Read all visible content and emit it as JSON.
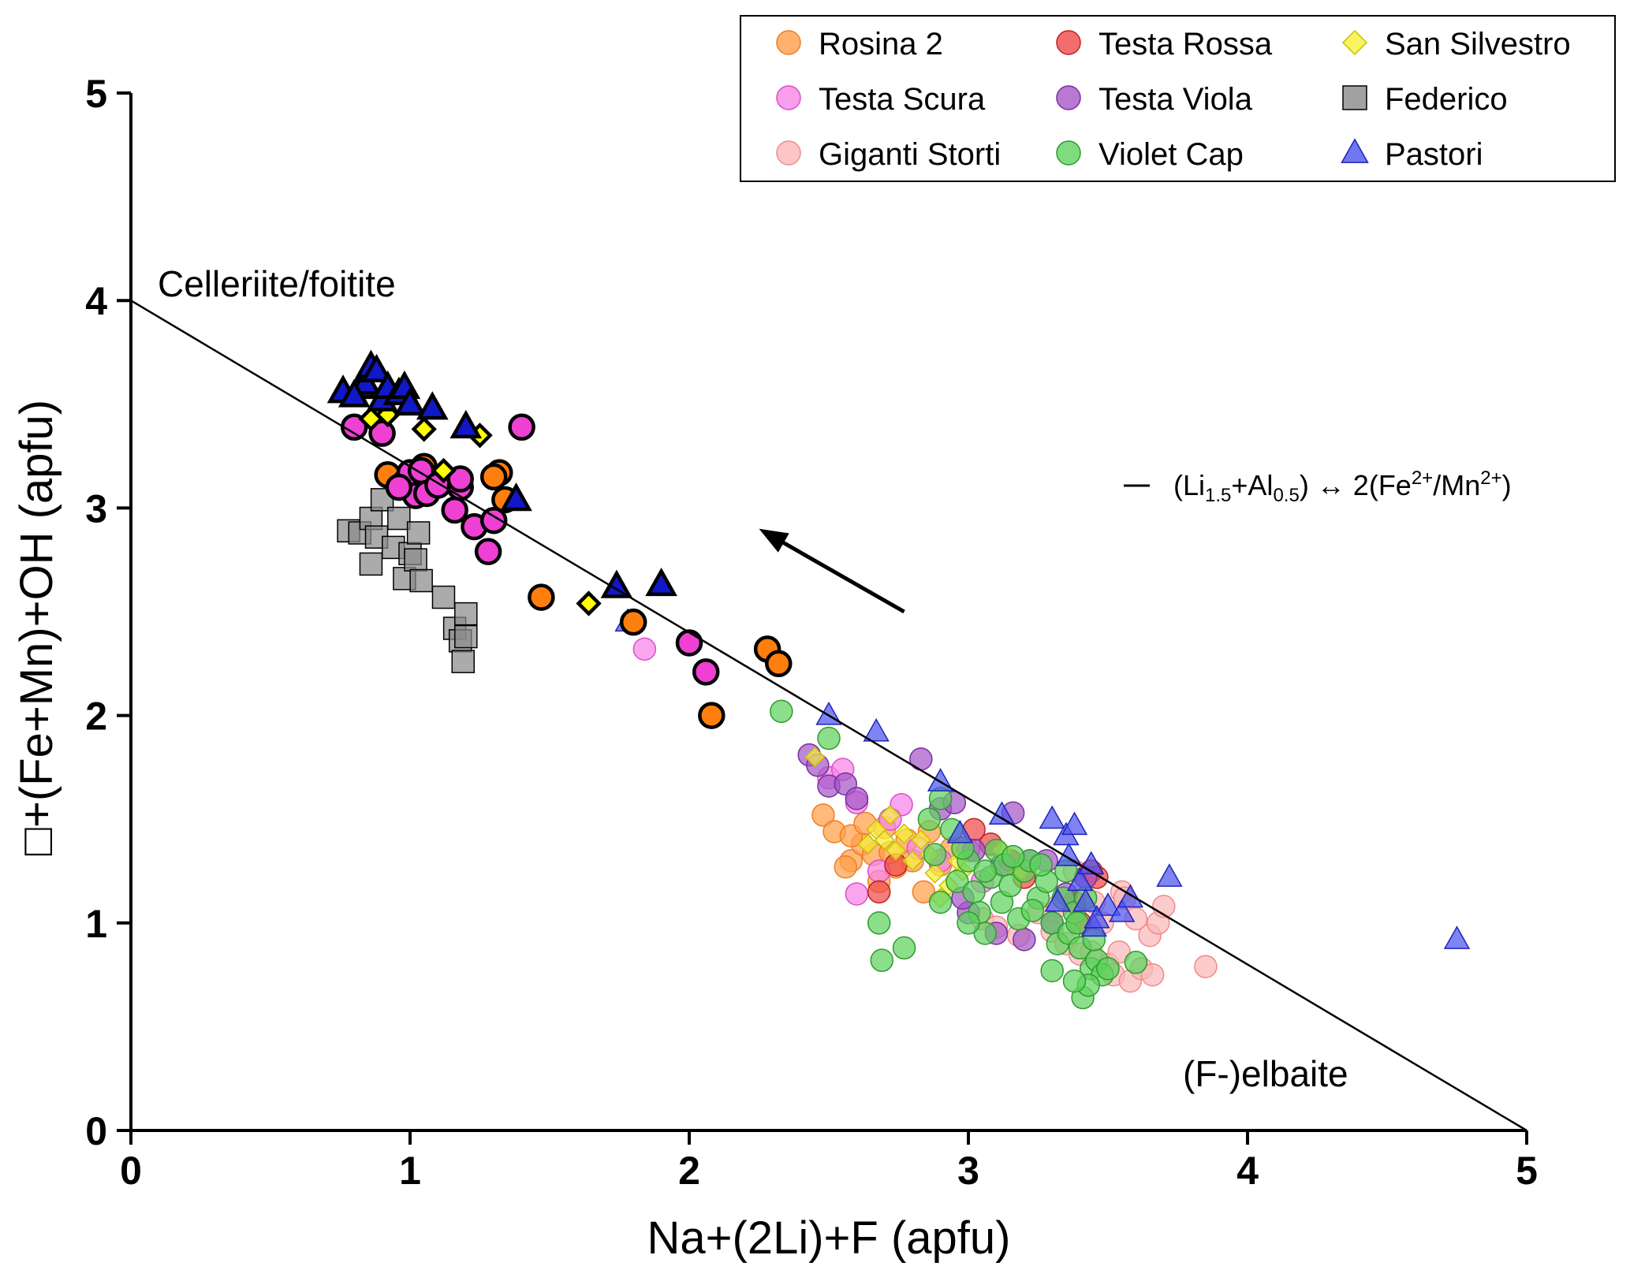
{
  "chart_data": {
    "type": "scatter",
    "xlabel": "Na+(2Li)+F   (apfu)",
    "ylabel": "□+(Fe+Mn)+OH   (apfu)",
    "xlim": [
      0,
      5
    ],
    "ylim": [
      0,
      5
    ],
    "xticks": [
      "0",
      "1",
      "2",
      "3",
      "4",
      "5"
    ],
    "yticks": [
      "0",
      "1",
      "2",
      "3",
      "4",
      "5"
    ],
    "grid": false,
    "legend_position": "top-right",
    "annotations": {
      "top_left": "Celleriite/foitite",
      "bottom_right": "(F-)elbaite"
    },
    "reference_line": {
      "x": [
        0,
        5
      ],
      "y": [
        4,
        0
      ],
      "label_prefix": "(Li",
      "li_sub": "1.5",
      "plus_al": "+Al",
      "al_sub": "0.5",
      "middle": ") ↔ 2(Fe",
      "fe_sup": "2+",
      "slash_mn": "/Mn",
      "mn_sup": "2+",
      "suffix": ")"
    },
    "arrow": {
      "from": [
        2.77,
        2.5
      ],
      "to": [
        2.25,
        2.9
      ]
    },
    "series": [
      {
        "name": "Rosina 2",
        "marker": "circle",
        "fill": "#ff9f4a",
        "stroke": "#f07d20",
        "bold_fill": "#ff7f0e",
        "points": [
          [
            2.48,
            1.52
          ],
          [
            2.52,
            1.44
          ],
          [
            2.58,
            1.3
          ],
          [
            2.62,
            1.38
          ],
          [
            2.66,
            1.33
          ],
          [
            2.7,
            1.46
          ],
          [
            2.74,
            1.27
          ],
          [
            2.78,
            1.4
          ],
          [
            2.58,
            1.42
          ],
          [
            2.68,
            1.2
          ],
          [
            2.8,
            1.3
          ],
          [
            2.84,
            1.15
          ],
          [
            2.86,
            1.44
          ],
          [
            2.9,
            1.28
          ],
          [
            2.94,
            1.36
          ],
          [
            2.56,
            1.27
          ],
          [
            2.72,
            1.34
          ],
          [
            2.63,
            1.48
          ]
        ],
        "bold_points": [
          [
            0.92,
            3.16
          ],
          [
            1.02,
            3.13
          ],
          [
            1.32,
            3.17
          ],
          [
            1.34,
            3.04
          ],
          [
            1.3,
            3.15
          ],
          [
            1.47,
            2.57
          ],
          [
            1.8,
            2.45
          ],
          [
            2.28,
            2.32
          ],
          [
            2.32,
            2.25
          ],
          [
            2.08,
            2.0
          ],
          [
            0.98,
            3.12
          ],
          [
            1.05,
            3.2
          ]
        ]
      },
      {
        "name": "Testa Scura",
        "marker": "circle",
        "fill": "#f784e8",
        "stroke": "#d84fc8",
        "bold_fill": "#ee40d3",
        "points": [
          [
            1.84,
            2.32
          ],
          [
            2.5,
            1.7
          ],
          [
            2.55,
            1.74
          ],
          [
            2.6,
            1.58
          ],
          [
            2.6,
            1.14
          ],
          [
            2.68,
            1.25
          ],
          [
            2.76,
            1.57
          ],
          [
            2.72,
            1.5
          ],
          [
            2.9,
            1.3
          ],
          [
            3.0,
            1.35
          ],
          [
            2.82,
            1.36
          ],
          [
            3.05,
            1.2
          ]
        ],
        "bold_points": [
          [
            0.8,
            3.39
          ],
          [
            0.9,
            3.36
          ],
          [
            1.02,
            3.06
          ],
          [
            1.0,
            3.17
          ],
          [
            1.04,
            3.18
          ],
          [
            1.06,
            3.07
          ],
          [
            1.1,
            3.11
          ],
          [
            1.16,
            2.99
          ],
          [
            1.18,
            3.1
          ],
          [
            1.23,
            2.91
          ],
          [
            1.28,
            2.79
          ],
          [
            1.3,
            2.94
          ],
          [
            1.4,
            3.39
          ],
          [
            2.0,
            2.35
          ],
          [
            2.06,
            2.21
          ],
          [
            1.18,
            3.14
          ],
          [
            0.96,
            3.1
          ]
        ]
      },
      {
        "name": "Giganti Storti",
        "marker": "circle",
        "fill": "#fbb8b8",
        "stroke": "#ef8a8a",
        "points": [
          [
            3.05,
            1.02
          ],
          [
            3.1,
            0.98
          ],
          [
            3.18,
            0.94
          ],
          [
            3.25,
            1.05
          ],
          [
            3.3,
            0.96
          ],
          [
            3.35,
            0.9
          ],
          [
            3.4,
            0.85
          ],
          [
            3.42,
            1.22
          ],
          [
            3.45,
            1.1
          ],
          [
            3.48,
            1.0
          ],
          [
            3.5,
            0.8
          ],
          [
            3.52,
            0.75
          ],
          [
            3.55,
            1.15
          ],
          [
            3.58,
            0.72
          ],
          [
            3.6,
            1.02
          ],
          [
            3.62,
            0.78
          ],
          [
            3.65,
            0.94
          ],
          [
            3.66,
            0.75
          ],
          [
            3.68,
            1.0
          ],
          [
            3.7,
            1.08
          ],
          [
            3.56,
            1.12
          ],
          [
            3.85,
            0.79
          ],
          [
            3.38,
            1.25
          ],
          [
            3.44,
            0.86
          ],
          [
            3.32,
            1.08
          ],
          [
            3.54,
            0.86
          ]
        ]
      },
      {
        "name": "Testa Rossa",
        "marker": "circle",
        "fill": "#ef4a4a",
        "stroke": "#c02020",
        "points": [
          [
            2.68,
            1.15
          ],
          [
            2.74,
            1.28
          ],
          [
            3.02,
            1.45
          ],
          [
            3.08,
            1.38
          ],
          [
            3.15,
            1.3
          ],
          [
            3.2,
            1.22
          ],
          [
            3.44,
            1.25
          ],
          [
            3.4,
            1.0
          ],
          [
            3.38,
            1.1
          ],
          [
            3.46,
            1.22
          ]
        ]
      },
      {
        "name": "Testa Viola",
        "marker": "circle",
        "fill": "#a558c6",
        "stroke": "#7a2ea0",
        "points": [
          [
            2.43,
            1.81
          ],
          [
            2.46,
            1.76
          ],
          [
            2.5,
            1.66
          ],
          [
            2.56,
            1.67
          ],
          [
            2.6,
            1.6
          ],
          [
            2.83,
            1.79
          ],
          [
            2.9,
            1.55
          ],
          [
            2.95,
            1.58
          ],
          [
            3.02,
            1.35
          ],
          [
            3.12,
            1.28
          ],
          [
            3.16,
            1.53
          ],
          [
            3.22,
            1.3
          ],
          [
            3.28,
            1.3
          ],
          [
            3.35,
            1.14
          ],
          [
            3.42,
            1.22
          ],
          [
            3.0,
            1.05
          ],
          [
            2.98,
            1.12
          ],
          [
            3.1,
            0.95
          ],
          [
            3.2,
            0.92
          ],
          [
            3.3,
            1.0
          ]
        ]
      },
      {
        "name": "San Silvestro",
        "marker": "diamond",
        "fill": "#f5f03a",
        "stroke": "#c8c000",
        "bold_fill": "#ffff00",
        "points": [
          [
            2.45,
            1.8
          ],
          [
            2.64,
            1.38
          ],
          [
            2.67,
            1.45
          ],
          [
            2.7,
            1.4
          ],
          [
            2.74,
            1.35
          ],
          [
            2.77,
            1.43
          ],
          [
            2.8,
            1.3
          ],
          [
            2.86,
            1.33
          ],
          [
            2.88,
            1.24
          ],
          [
            2.9,
            1.12
          ],
          [
            2.93,
            1.18
          ],
          [
            2.98,
            1.25
          ],
          [
            3.12,
            1.35
          ],
          [
            3.18,
            1.24
          ],
          [
            2.83,
            1.4
          ],
          [
            2.96,
            1.3
          ],
          [
            2.72,
            1.52
          ]
        ],
        "bold_points": [
          [
            0.86,
            3.43
          ],
          [
            1.05,
            3.38
          ],
          [
            1.12,
            3.18
          ],
          [
            1.25,
            3.35
          ],
          [
            1.64,
            2.54
          ],
          [
            0.92,
            3.45
          ]
        ]
      },
      {
        "name": "Federico",
        "marker": "square",
        "fill": "#8a8a8a",
        "stroke": "#000000",
        "points": [
          [
            0.78,
            2.89
          ],
          [
            0.82,
            2.88
          ],
          [
            0.86,
            2.95
          ],
          [
            0.86,
            2.73
          ],
          [
            0.88,
            2.86
          ],
          [
            0.9,
            3.04
          ],
          [
            0.94,
            2.81
          ],
          [
            0.96,
            2.95
          ],
          [
            0.98,
            2.66
          ],
          [
            1.0,
            2.78
          ],
          [
            1.02,
            2.75
          ],
          [
            1.04,
            2.65
          ],
          [
            1.03,
            2.88
          ],
          [
            1.12,
            2.57
          ],
          [
            1.16,
            2.42
          ],
          [
            1.18,
            2.36
          ],
          [
            1.19,
            2.26
          ],
          [
            1.2,
            2.49
          ],
          [
            1.2,
            2.38
          ]
        ]
      },
      {
        "name": "Violet Cap",
        "marker": "circle",
        "fill": "#5ed35e",
        "stroke": "#2f9a2f",
        "bold_fill": "#22c022",
        "points": [
          [
            2.33,
            2.02
          ],
          [
            2.5,
            1.89
          ],
          [
            2.68,
            1.0
          ],
          [
            2.69,
            0.82
          ],
          [
            2.77,
            0.88
          ],
          [
            2.86,
            1.5
          ],
          [
            2.9,
            1.6
          ],
          [
            2.88,
            1.33
          ],
          [
            2.9,
            1.1
          ],
          [
            2.94,
            1.45
          ],
          [
            2.96,
            1.2
          ],
          [
            3.0,
            1.3
          ],
          [
            3.02,
            1.15
          ],
          [
            3.04,
            1.05
          ],
          [
            3.06,
            0.95
          ],
          [
            3.08,
            1.22
          ],
          [
            3.1,
            1.35
          ],
          [
            3.12,
            1.1
          ],
          [
            3.13,
            1.28
          ],
          [
            3.15,
            1.18
          ],
          [
            3.18,
            1.02
          ],
          [
            3.2,
            1.25
          ],
          [
            3.22,
            1.3
          ],
          [
            3.25,
            1.12
          ],
          [
            3.28,
            1.2
          ],
          [
            3.3,
            1.0
          ],
          [
            3.32,
            0.9
          ],
          [
            3.34,
            1.12
          ],
          [
            3.35,
            1.25
          ],
          [
            3.36,
            0.95
          ],
          [
            3.38,
            1.05
          ],
          [
            3.4,
            0.88
          ],
          [
            3.42,
            1.12
          ],
          [
            3.44,
            0.78
          ],
          [
            3.46,
            0.82
          ],
          [
            3.48,
            0.75
          ],
          [
            3.5,
            0.78
          ],
          [
            3.41,
            0.64
          ],
          [
            3.43,
            0.7
          ],
          [
            3.38,
            0.72
          ],
          [
            3.3,
            0.77
          ],
          [
            3.6,
            0.81
          ],
          [
            3.45,
            0.92
          ],
          [
            3.26,
            1.28
          ],
          [
            3.16,
            1.32
          ],
          [
            3.06,
            1.25
          ],
          [
            2.98,
            1.36
          ],
          [
            3.0,
            1.0
          ],
          [
            3.23,
            1.06
          ],
          [
            3.39,
            1.0
          ]
        ]
      },
      {
        "name": "Pastori",
        "marker": "triangle",
        "fill": "#4d55ee",
        "stroke": "#1c25b8",
        "bold_fill": "#1018c8",
        "points": [
          [
            1.78,
            2.45
          ],
          [
            2.5,
            2.0
          ],
          [
            2.67,
            1.92
          ],
          [
            2.9,
            1.68
          ],
          [
            2.97,
            1.43
          ],
          [
            3.12,
            1.52
          ],
          [
            3.3,
            1.5
          ],
          [
            3.35,
            1.42
          ],
          [
            3.36,
            1.32
          ],
          [
            3.38,
            1.47
          ],
          [
            3.4,
            1.2
          ],
          [
            3.42,
            1.1
          ],
          [
            3.44,
            1.28
          ],
          [
            3.45,
            0.98
          ],
          [
            3.5,
            1.08
          ],
          [
            3.55,
            1.05
          ],
          [
            3.58,
            1.12
          ],
          [
            3.72,
            1.22
          ],
          [
            4.75,
            0.92
          ],
          [
            3.32,
            1.1
          ],
          [
            3.46,
            1.02
          ]
        ],
        "bold_points": [
          [
            0.76,
            3.56
          ],
          [
            0.82,
            3.58
          ],
          [
            0.84,
            3.6
          ],
          [
            0.86,
            3.68
          ],
          [
            0.88,
            3.66
          ],
          [
            0.9,
            3.52
          ],
          [
            0.92,
            3.58
          ],
          [
            0.96,
            3.55
          ],
          [
            0.98,
            3.58
          ],
          [
            1.0,
            3.5
          ],
          [
            1.08,
            3.48
          ],
          [
            1.2,
            3.39
          ],
          [
            1.38,
            3.04
          ],
          [
            1.74,
            2.62
          ],
          [
            1.9,
            2.63
          ],
          [
            0.8,
            3.54
          ]
        ]
      }
    ]
  }
}
